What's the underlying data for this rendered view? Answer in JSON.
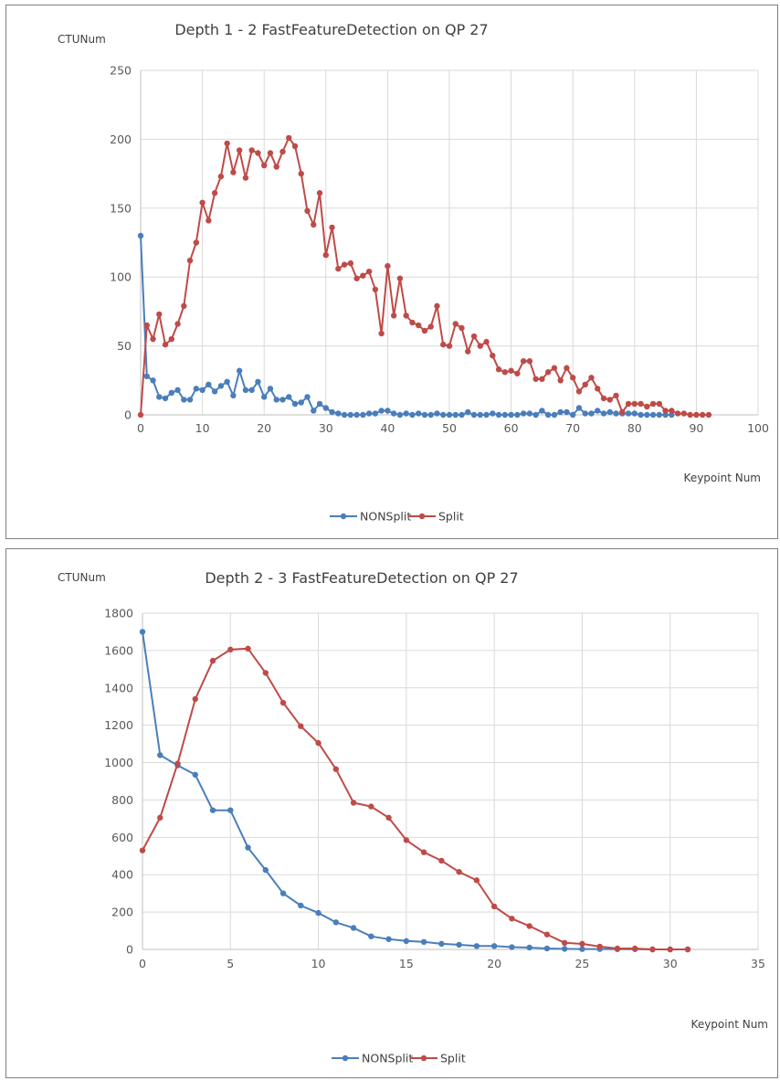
{
  "chart_data": [
    {
      "type": "line",
      "title": "Depth 1 - 2 FastFeatureDetection on QP 27",
      "ylabel": "CTUNum",
      "xlabel": "Keypoint Num",
      "xlim": [
        0,
        100
      ],
      "ylim": [
        0,
        250
      ],
      "x_ticks": [
        0,
        10,
        20,
        30,
        40,
        50,
        60,
        70,
        80,
        90,
        100
      ],
      "y_ticks": [
        0,
        50,
        100,
        150,
        200,
        250
      ],
      "grid": true,
      "legend_position": "bottom",
      "series": [
        {
          "name": "NONSplit",
          "color": "#4a7ebb",
          "x": [
            0,
            1,
            2,
            3,
            4,
            5,
            6,
            7,
            8,
            9,
            10,
            11,
            12,
            13,
            14,
            15,
            16,
            17,
            18,
            19,
            20,
            21,
            22,
            23,
            24,
            25,
            26,
            27,
            28,
            29,
            30,
            31,
            32,
            33,
            34,
            35,
            36,
            37,
            38,
            39,
            40,
            41,
            42,
            43,
            44,
            45,
            46,
            47,
            48,
            49,
            50,
            51,
            52,
            53,
            54,
            55,
            56,
            57,
            58,
            59,
            60,
            61,
            62,
            63,
            64,
            65,
            66,
            67,
            68,
            69,
            70,
            71,
            72,
            73,
            74,
            75,
            76,
            77,
            78,
            79,
            80,
            81,
            82,
            83,
            84,
            85,
            86
          ],
          "y": [
            130,
            28,
            25,
            13,
            12,
            16,
            18,
            11,
            11,
            19,
            18,
            22,
            17,
            21,
            24,
            14,
            32,
            18,
            18,
            24,
            13,
            19,
            11,
            11,
            13,
            8,
            9,
            13,
            3,
            8,
            5,
            2,
            1,
            0,
            0,
            0,
            0,
            1,
            1,
            3,
            3,
            1,
            0,
            1,
            0,
            1,
            0,
            0,
            1,
            0,
            0,
            0,
            0,
            2,
            0,
            0,
            0,
            1,
            0,
            0,
            0,
            0,
            1,
            1,
            0,
            3,
            0,
            0,
            2,
            2,
            0,
            5,
            1,
            1,
            3,
            1,
            2,
            1,
            1,
            1,
            1,
            0,
            0,
            0,
            0,
            0,
            0
          ]
        },
        {
          "name": "Split",
          "color": "#be4b48",
          "x": [
            0,
            1,
            2,
            3,
            4,
            5,
            6,
            7,
            8,
            9,
            10,
            11,
            12,
            13,
            14,
            15,
            16,
            17,
            18,
            19,
            20,
            21,
            22,
            23,
            24,
            25,
            26,
            27,
            28,
            29,
            30,
            31,
            32,
            33,
            34,
            35,
            36,
            37,
            38,
            39,
            40,
            41,
            42,
            43,
            44,
            45,
            46,
            47,
            48,
            49,
            50,
            51,
            52,
            53,
            54,
            55,
            56,
            57,
            58,
            59,
            60,
            61,
            62,
            63,
            64,
            65,
            66,
            67,
            68,
            69,
            70,
            71,
            72,
            73,
            74,
            75,
            76,
            77,
            78,
            79,
            80,
            81,
            82,
            83,
            84,
            85,
            86,
            87,
            88,
            89,
            90,
            91,
            92
          ],
          "y": [
            0,
            65,
            55,
            73,
            51,
            55,
            66,
            79,
            112,
            125,
            154,
            141,
            161,
            173,
            197,
            176,
            192,
            172,
            192,
            190,
            181,
            190,
            180,
            191,
            201,
            195,
            175,
            148,
            138,
            161,
            116,
            136,
            106,
            109,
            110,
            99,
            101,
            104,
            91,
            59,
            108,
            72,
            99,
            72,
            67,
            65,
            61,
            64,
            79,
            51,
            50,
            66,
            63,
            46,
            57,
            50,
            53,
            43,
            33,
            31,
            32,
            30,
            39,
            39,
            26,
            26,
            31,
            34,
            25,
            34,
            27,
            17,
            22,
            27,
            19,
            12,
            11,
            14,
            2,
            8,
            8,
            8,
            6,
            8,
            8,
            3,
            3,
            1,
            1,
            0,
            0,
            0,
            0
          ]
        }
      ]
    },
    {
      "type": "line",
      "title": "Depth 2 - 3 FastFeatureDetection on QP 27",
      "ylabel": "CTUNum",
      "xlabel": "Keypoint Num",
      "xlim": [
        0,
        35
      ],
      "ylim": [
        0,
        1800
      ],
      "x_ticks": [
        0,
        5,
        10,
        15,
        20,
        25,
        30,
        35
      ],
      "y_ticks": [
        0,
        200,
        400,
        600,
        800,
        1000,
        1200,
        1400,
        1600,
        1800
      ],
      "grid": true,
      "legend_position": "bottom",
      "series": [
        {
          "name": "NONSplit",
          "color": "#4a7ebb",
          "x": [
            0,
            1,
            2,
            3,
            4,
            5,
            6,
            7,
            8,
            9,
            10,
            11,
            12,
            13,
            14,
            15,
            16,
            17,
            18,
            19,
            20,
            21,
            22,
            23,
            24,
            25,
            26,
            27,
            28,
            29,
            30,
            31
          ],
          "y": [
            1700,
            1040,
            985,
            935,
            745,
            745,
            545,
            425,
            300,
            235,
            195,
            145,
            115,
            70,
            55,
            45,
            40,
            30,
            25,
            18,
            18,
            12,
            10,
            5,
            3,
            2,
            2,
            1,
            1,
            0,
            0,
            0
          ]
        },
        {
          "name": "Split",
          "color": "#be4b48",
          "x": [
            0,
            1,
            2,
            3,
            4,
            5,
            6,
            7,
            8,
            9,
            10,
            11,
            12,
            13,
            14,
            15,
            16,
            17,
            18,
            19,
            20,
            21,
            22,
            23,
            24,
            25,
            26,
            27,
            28,
            29,
            30,
            31
          ],
          "y": [
            530,
            705,
            995,
            1340,
            1545,
            1605,
            1610,
            1480,
            1320,
            1195,
            1105,
            965,
            785,
            765,
            705,
            585,
            520,
            475,
            415,
            370,
            230,
            165,
            125,
            80,
            35,
            30,
            15,
            5,
            5,
            0,
            0,
            0
          ]
        }
      ]
    }
  ]
}
